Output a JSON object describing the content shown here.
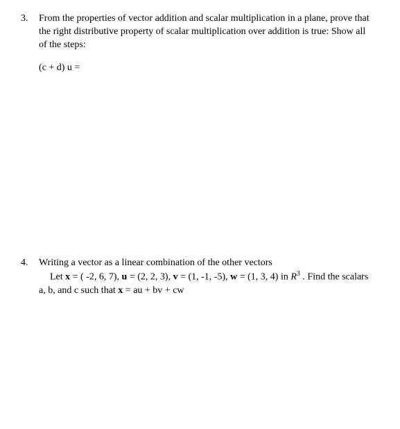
{
  "problem3": {
    "number": "3.",
    "text_l1": "From the properties of vector addition and scalar multiplication in a plane, prove that",
    "text_l2": "the right distributive property of scalar multiplication over addition is true: Show all",
    "text_l3": "of the steps:",
    "equation": "(c + d) u ="
  },
  "problem4": {
    "number": "4.",
    "title": "Writing a vector as a linear combination of the other vectors",
    "let": "Let ",
    "x_label": "x",
    "x_val": " = ( -2, 6, 7), ",
    "u_label": "u",
    "u_val": " = (2, 2, 3), ",
    "v_label": "v",
    "v_val": " = (1, -1, -5), ",
    "w_label": "w",
    "w_val": " = (1, 3, 4) in  ",
    "space_R": "R",
    "space_exp": "3",
    "tail1": " .  Find the scalars",
    "line2_pre": "a, b, and c such that   ",
    "line2_x": "x",
    "line2_rest": " = au + bv + cw"
  }
}
